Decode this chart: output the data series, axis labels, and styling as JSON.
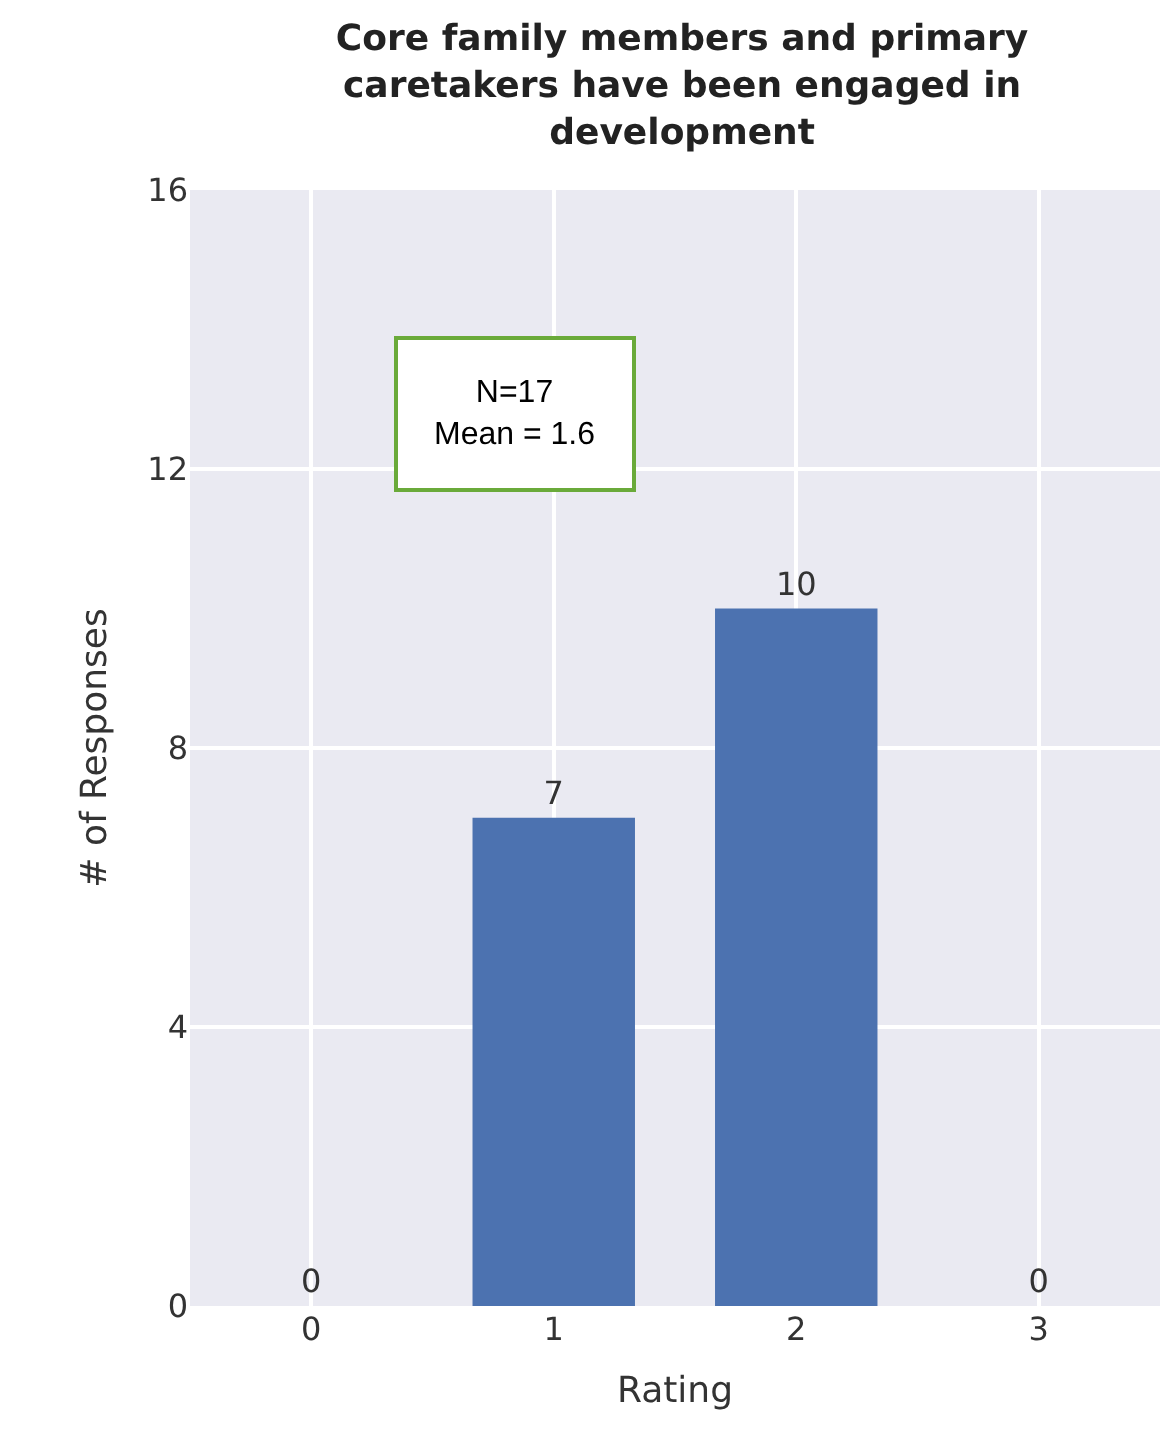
{
  "chart_data": {
    "type": "bar",
    "title": "Core family members and primary\ncaretakers have been engaged in\ndevelopment",
    "xlabel": "Rating",
    "ylabel": "# of Responses",
    "categories": [
      "0",
      "1",
      "2",
      "3"
    ],
    "values": [
      0,
      7,
      10,
      0
    ],
    "color": "#4c72b0",
    "ylim": [
      0,
      16
    ],
    "yticks": [
      0,
      4,
      8,
      12,
      16
    ],
    "grid": true,
    "data_labels": true,
    "annotations": [
      "N=17\nMean = 1.6"
    ]
  }
}
